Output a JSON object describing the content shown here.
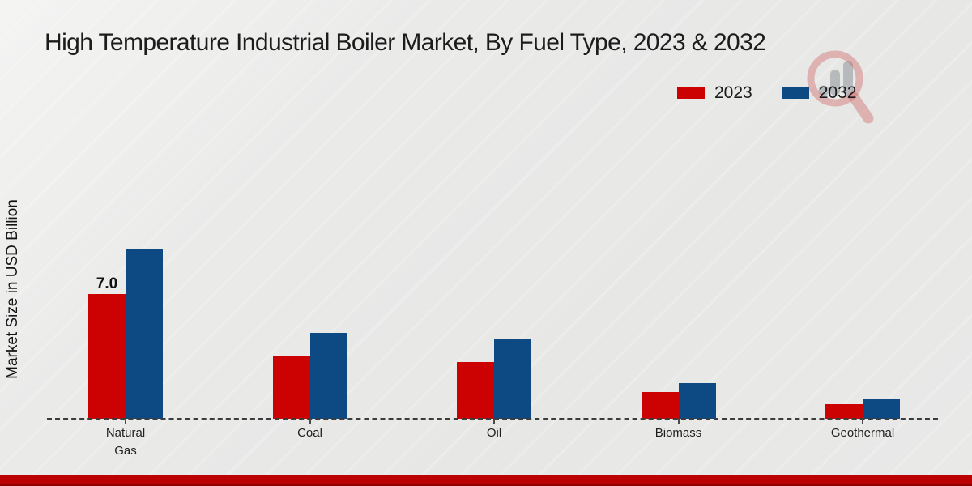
{
  "header": {
    "title": "High Temperature Industrial Boiler Market, By Fuel Type, 2023 & 2032"
  },
  "legend": {
    "items": [
      {
        "label": "2023",
        "color": "#cc0202"
      },
      {
        "label": "2032",
        "color": "#0d4a84"
      }
    ]
  },
  "watermark": {
    "icon": "magnifier-bar-chart-logo",
    "ring_color": "rgba(205,90,90,0.38)",
    "bars_color": "rgba(125,130,140,0.45)"
  },
  "footer": {
    "accent_color": "#bb0202",
    "accent_edge_color": "#8e0101"
  },
  "chart_data": {
    "type": "bar",
    "title": "High Temperature Industrial Boiler Market, By Fuel Type, 2023 & 2032",
    "ylabel": "Market Size in USD Billion",
    "xlabel": "",
    "categories": [
      "Natural Gas",
      "Coal",
      "Oil",
      "Biomass",
      "Geothermal"
    ],
    "category_label_lines": [
      [
        "Natural",
        "Gas"
      ],
      [
        "Coal"
      ],
      [
        "Oil"
      ],
      [
        "Biomass"
      ],
      [
        "Geothermal"
      ]
    ],
    "series": [
      {
        "name": "2023",
        "color": "#cc0202",
        "values": [
          7.0,
          3.5,
          3.2,
          1.5,
          0.8
        ]
      },
      {
        "name": "2032",
        "color": "#0d4a84",
        "values": [
          9.5,
          4.8,
          4.5,
          2.0,
          1.1
        ]
      }
    ],
    "annotations": [
      {
        "category_index": 0,
        "series_index": 0,
        "text": "7.0"
      }
    ],
    "ylim": [
      0,
      10
    ],
    "grid": false,
    "legend_position": "top-right",
    "baseline_style": "dashed"
  }
}
